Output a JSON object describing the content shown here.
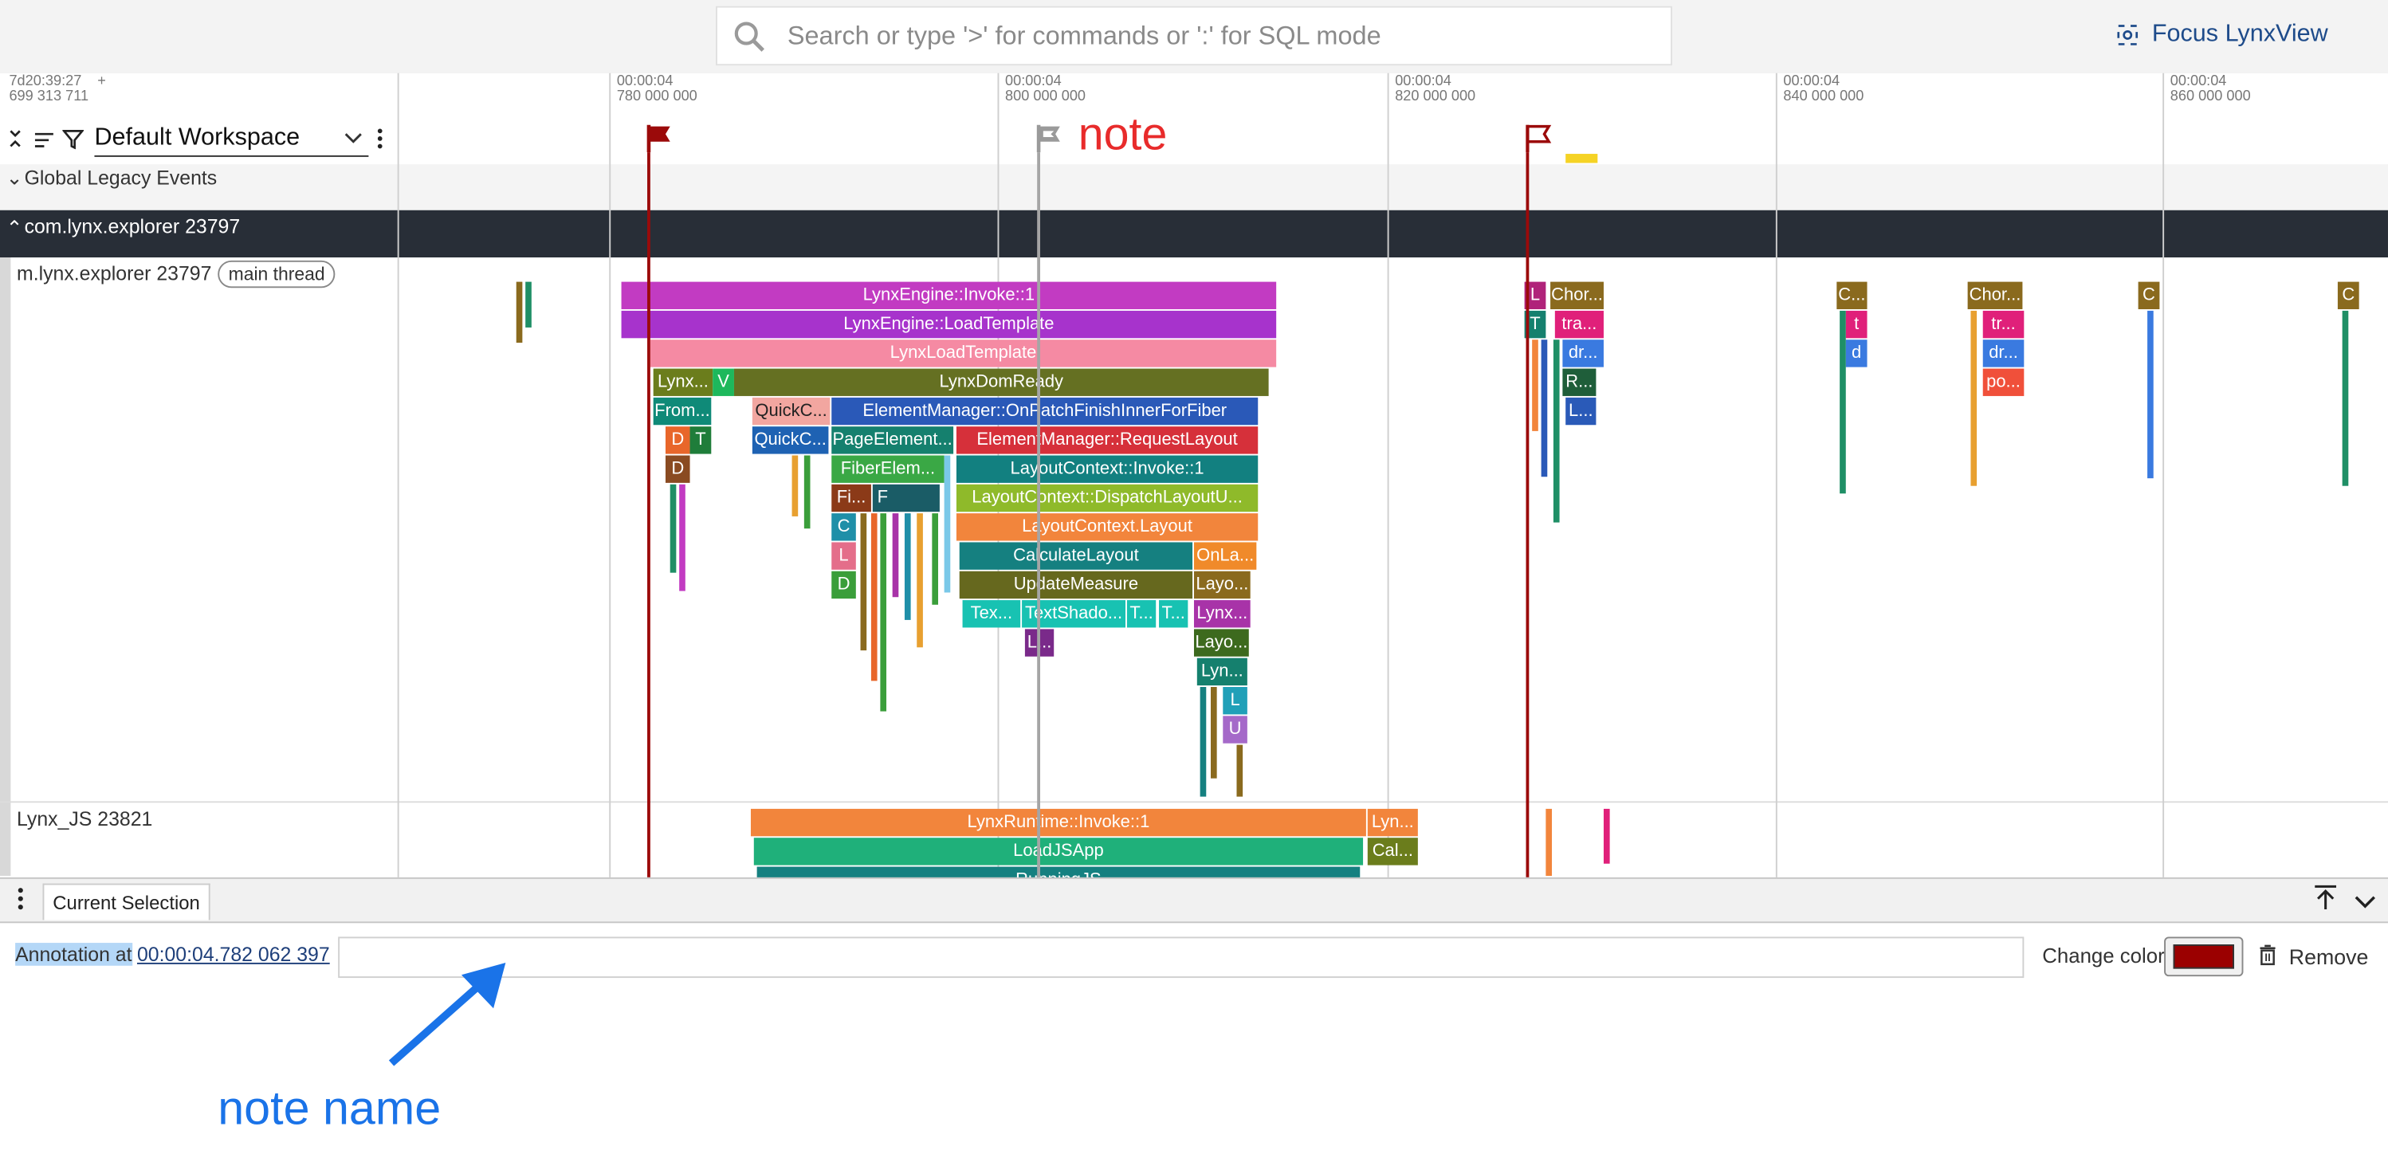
{
  "search": {
    "placeholder": "Search or type '>' for commands or ':' for SQL mode"
  },
  "focus_button": "Focus LynxView",
  "timeline": {
    "start_label_line1": "7d20:39:27",
    "start_label_line2": "699 313 711",
    "start_plus": "+",
    "ticks": [
      {
        "line1": "00:00:04",
        "line2": "780 000 000"
      },
      {
        "line1": "00:00:04",
        "line2": "800 000 000"
      },
      {
        "line1": "00:00:04",
        "line2": "820 000 000"
      },
      {
        "line1": "00:00:04",
        "line2": "840 000 000"
      },
      {
        "line1": "00:00:04",
        "line2": "860 000 000"
      }
    ],
    "note_text": "note"
  },
  "workspace": {
    "label": "Default Workspace"
  },
  "sections": {
    "global": "Global Legacy Events",
    "process": "com.lynx.explorer 23797",
    "main_thread_name": "m.lynx.explorer 23797",
    "main_thread_badge": "main thread",
    "js_thread_name": "Lynx_JS 23821"
  },
  "slices": {
    "s0": "LynxEngine::Invoke::1",
    "s1": "LynxEngine::LoadTemplate",
    "s2": "LynxLoadTemplate",
    "s3": "Lynx...",
    "s4": "V",
    "s5": "LynxDomReady",
    "s6": "From...",
    "s7": "QuickC...",
    "s8": "ElementManager::OnPatchFinishInnerForFiber",
    "s9": "D",
    "s10": "T",
    "s11": "QuickC...",
    "s12": "PageElement...",
    "s13": "ElementManager::RequestLayout",
    "s14": "D",
    "s15": "FiberElem...",
    "s16": "LayoutContext::Invoke::1",
    "s17": "Fi...",
    "s18": "F",
    "s19": "LayoutContext::DispatchLayoutU...",
    "s20": "C",
    "s21": "LayoutContext.Layout",
    "s22": "L",
    "s23": "CalculateLayout",
    "s24": "OnLa...",
    "s25": "D",
    "s26": "UpdateMeasure",
    "s27": "Layo...",
    "s28": "Tex...",
    "s29": "TextShado...",
    "s30": "T...",
    "s31": "T...",
    "s32": "Lynx...",
    "s33": "L...",
    "s34": "Layo...",
    "s35": "Lyn...",
    "s36": "L",
    "s37": "U",
    "s38": "L",
    "s39": "Chor...",
    "s40": "T",
    "s41": "tra...",
    "s42": "dr...",
    "s43": "R...",
    "s44": "L...",
    "s45": "C...",
    "s46": "t",
    "s47": "d",
    "s48": "Chor...",
    "s49": "tr...",
    "s50": "dr...",
    "s51": "po...",
    "s52": "C",
    "s53": "C",
    "j0": "LynxRuntime::Invoke::1",
    "j1": "Lyn...",
    "j2": "LoadJSApp",
    "j3": "Cal...",
    "j4": "RunningJS"
  },
  "details": {
    "tab": "Current Selection",
    "annotation_prefix": "Annotation at",
    "annotation_time": "00:00:04.782 062 397",
    "change_color_label": "Change color:",
    "remove_label": "Remove",
    "color": "#9b0000"
  },
  "overlay": {
    "note_name": "note name"
  },
  "colors": {
    "flag": "#9b0a0a",
    "note_red": "#e82b2b",
    "arrow_blue": "#1a73e8"
  }
}
